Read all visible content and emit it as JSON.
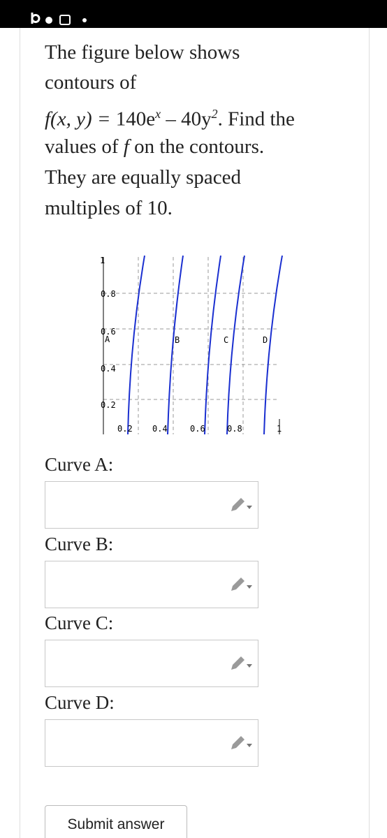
{
  "question": {
    "line1": "The figure below shows",
    "line2": "contours of",
    "formula": {
      "function": "f(x, y) =",
      "term1": "140e",
      "term1_exponent": "x",
      "operator": "–",
      "term2": "40y",
      "term2_exponent": "2",
      "tail": ". Find the"
    },
    "line4": {
      "start": "values of",
      "variable": "f",
      "end": "on the contours."
    },
    "line5": "They are equally spaced",
    "line6": "multiples of 10."
  },
  "figure": {
    "y_tick_labels": [
      "1",
      "0.8",
      "0.6",
      "0.4",
      "0.2"
    ],
    "x_tick_labels": [
      "0.2",
      "0.4",
      "0.6",
      "0.8",
      "1"
    ],
    "curve_labels": [
      "A",
      "B",
      "C",
      "D"
    ]
  },
  "answers": [
    {
      "label": "Curve A:"
    },
    {
      "label": "Curve B:"
    },
    {
      "label": "Curve C:"
    },
    {
      "label": "Curve D:"
    }
  ],
  "submit": "Submit answer"
}
